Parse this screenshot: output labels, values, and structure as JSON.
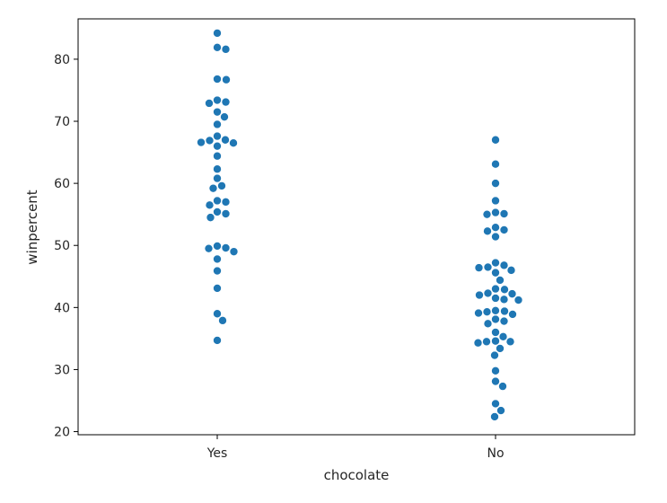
{
  "chart_data": {
    "type": "scatter",
    "subtype": "swarm",
    "title": "",
    "xlabel": "chocolate",
    "ylabel": "winpercent",
    "categories": [
      "Yes",
      "No"
    ],
    "ylim": [
      19.5,
      86.5
    ],
    "yticks": [
      20,
      30,
      40,
      50,
      60,
      70,
      80
    ],
    "grid": false,
    "legend": "none",
    "marker_color": "#1f77b4",
    "series": [
      {
        "category": "Yes",
        "values": [
          84.2,
          81.9,
          81.6,
          76.8,
          76.7,
          73.4,
          73.1,
          72.9,
          71.5,
          70.7,
          69.5,
          67.6,
          67.0,
          66.9,
          66.6,
          66.5,
          66.0,
          64.4,
          62.3,
          60.8,
          59.6,
          59.2,
          57.2,
          57.0,
          56.5,
          55.4,
          55.1,
          54.5,
          49.9,
          49.6,
          49.5,
          49.0,
          47.8,
          45.9,
          43.1,
          39.0,
          37.9,
          34.7
        ]
      },
      {
        "category": "No",
        "values": [
          67.0,
          63.1,
          60.0,
          57.2,
          55.3,
          55.1,
          55.0,
          52.9,
          52.5,
          52.3,
          51.4,
          47.2,
          46.8,
          46.5,
          46.4,
          46.0,
          45.6,
          44.4,
          43.0,
          42.9,
          42.3,
          42.2,
          42.0,
          41.5,
          41.3,
          41.2,
          39.5,
          39.4,
          39.3,
          39.1,
          38.9,
          38.1,
          37.8,
          37.4,
          36.0,
          35.3,
          34.6,
          34.5,
          34.5,
          34.3,
          33.4,
          32.3,
          29.8,
          28.1,
          27.3,
          24.5,
          23.4,
          22.4
        ]
      }
    ]
  }
}
